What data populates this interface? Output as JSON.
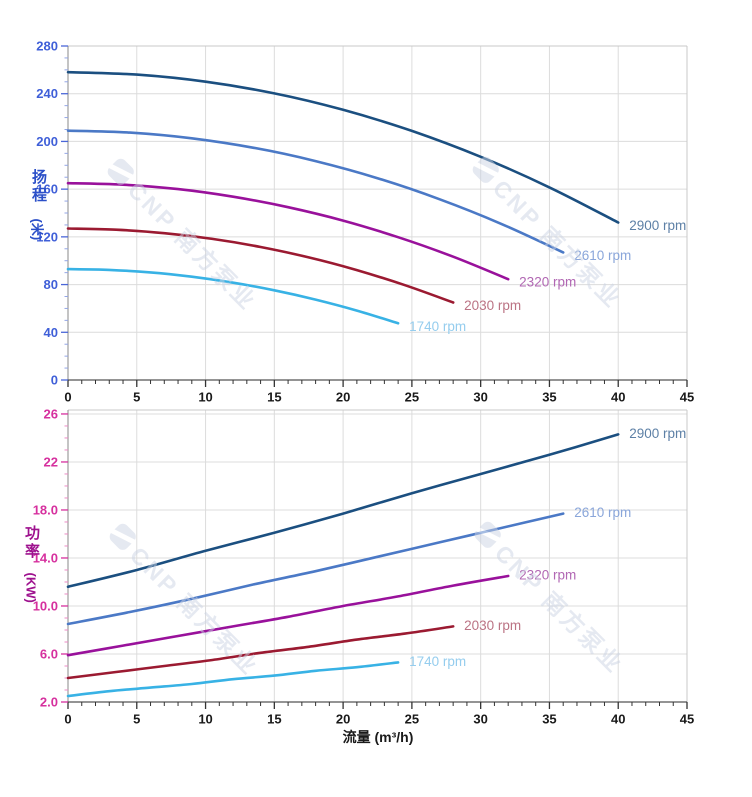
{
  "x_axis_title": "流量 (m³/h)",
  "watermark": {
    "text": "CNP 南方泵业",
    "color": "#ccd4e4"
  },
  "colors": {
    "grid": "#dcdcdc",
    "border": "#c9c9c9",
    "axis_left": "#8a8a8a",
    "axis_bottom": "#555555",
    "x_tick": "#333333",
    "x_label": "#1a1a1a",
    "head_label": "#3f5fd8",
    "head_tick": "#4a66d8",
    "head_tick_minor": "#93a5e4",
    "head_title": "#2b4fc8",
    "power_label": "#d6309e",
    "power_tick": "#d6309e",
    "power_tick_minor": "#eb8ac4",
    "power_title": "#9e118e"
  },
  "chart_data": [
    {
      "type": "line",
      "title": "",
      "ylabel": "扬程",
      "ylabel_unit": "(米)",
      "xlabel": "流量 (m³/h)",
      "xlim": [
        0,
        45
      ],
      "ylim": [
        0,
        280
      ],
      "x_major": 5,
      "x_minor": 1,
      "y_major": 40,
      "y_minor": 10,
      "x_tick_labels": [
        "0",
        "5",
        "10",
        "15",
        "20",
        "25",
        "30",
        "35",
        "40",
        "45"
      ],
      "y_tick_values": [
        0,
        40,
        80,
        120,
        160,
        200,
        240,
        280
      ],
      "y_tick_labels": [
        "0",
        "40",
        "80",
        "120",
        "160",
        "200",
        "240",
        "280"
      ],
      "grid": true,
      "legend_position": "end-of-curve",
      "series": [
        {
          "name": "2900 rpm",
          "color": "#1b4f80",
          "label_color": "#5d80a6",
          "x": [
            0,
            5,
            10,
            15,
            20,
            25,
            30,
            35,
            40
          ],
          "y": [
            258,
            256,
            250.1,
            240.3,
            226.5,
            208.8,
            187.1,
            161.5,
            132
          ]
        },
        {
          "name": "2610 rpm",
          "color": "#4b79c6",
          "label_color": "#8aa6da",
          "x": [
            0,
            4.5,
            9,
            13.5,
            18,
            22.5,
            27,
            31.5,
            36
          ],
          "y": [
            209,
            207.4,
            202.6,
            194.7,
            183.5,
            169.2,
            151.6,
            130.9,
            107
          ]
        },
        {
          "name": "2320 rpm",
          "color": "#99119b",
          "label_color": "#b167b3",
          "x": [
            0,
            4,
            8,
            12,
            16,
            20,
            24,
            28,
            32
          ],
          "y": [
            165,
            163.7,
            160,
            153.7,
            144.9,
            133.6,
            119.7,
            103.4,
            84.5
          ]
        },
        {
          "name": "2030 rpm",
          "color": "#9b1a31",
          "label_color": "#bb7384",
          "x": [
            0,
            3.5,
            7,
            10.5,
            14,
            17.5,
            21,
            24.5,
            28
          ],
          "y": [
            127,
            126,
            123.1,
            118.3,
            111.5,
            102.8,
            92.1,
            79.5,
            65
          ]
        },
        {
          "name": "1740 rpm",
          "color": "#38b2e5",
          "label_color": "#95cdee",
          "x": [
            0,
            3,
            6,
            9,
            12,
            15,
            18,
            21,
            24
          ],
          "y": [
            93,
            92.3,
            90.2,
            86.6,
            81.6,
            75.2,
            67.4,
            58.2,
            47.5
          ]
        }
      ]
    },
    {
      "type": "line",
      "title": "",
      "ylabel": "功率",
      "ylabel_unit": "(KW)",
      "xlabel": "流量 (m³/h)",
      "xlim": [
        0,
        45
      ],
      "ylim": [
        2,
        26.33
      ],
      "x_major": 5,
      "x_minor": 1,
      "y_major": 4,
      "y_minor": 1,
      "x_tick_labels": [
        "0",
        "5",
        "10",
        "15",
        "20",
        "25",
        "30",
        "35",
        "40",
        "45"
      ],
      "y_tick_values": [
        2,
        6,
        10,
        14,
        18,
        22,
        26
      ],
      "y_tick_labels": [
        "2.0",
        "6.0",
        "10.0",
        "14.0",
        "18.0",
        "22",
        "26"
      ],
      "grid": true,
      "legend_position": "end-of-curve",
      "series": [
        {
          "name": "2900 rpm",
          "color": "#1b4f80",
          "label_color": "#5d80a6",
          "x": [
            0,
            5,
            10,
            15,
            20,
            25,
            30,
            35,
            40
          ],
          "y": [
            11.6,
            13.0,
            14.6,
            16.1,
            17.7,
            19.4,
            21.0,
            22.6,
            24.3
          ]
        },
        {
          "name": "2610 rpm",
          "color": "#4b79c6",
          "label_color": "#8aa6da",
          "x": [
            0,
            4.5,
            9,
            13.5,
            18,
            22.5,
            27,
            31.5,
            36
          ],
          "y": [
            8.5,
            9.5,
            10.6,
            11.8,
            12.9,
            14.1,
            15.3,
            16.5,
            17.7
          ]
        },
        {
          "name": "2320 rpm",
          "color": "#99119b",
          "label_color": "#b167b3",
          "x": [
            0,
            4,
            8,
            12,
            16,
            20,
            24,
            28,
            32
          ],
          "y": [
            5.9,
            6.7,
            7.5,
            8.3,
            9.1,
            10.0,
            10.8,
            11.7,
            12.5
          ]
        },
        {
          "name": "2030 rpm",
          "color": "#9b1a31",
          "label_color": "#bb7384",
          "x": [
            0,
            3.5,
            7,
            10.5,
            14,
            17.5,
            21,
            24.5,
            28
          ],
          "y": [
            4.0,
            4.5,
            5.0,
            5.5,
            6.1,
            6.6,
            7.2,
            7.7,
            8.3
          ]
        },
        {
          "name": "1740 rpm",
          "color": "#38b2e5",
          "label_color": "#95cdee",
          "x": [
            0,
            3,
            6,
            9,
            12,
            15,
            18,
            21,
            24
          ],
          "y": [
            2.5,
            2.9,
            3.2,
            3.5,
            3.9,
            4.2,
            4.6,
            4.9,
            5.3
          ]
        }
      ]
    }
  ]
}
